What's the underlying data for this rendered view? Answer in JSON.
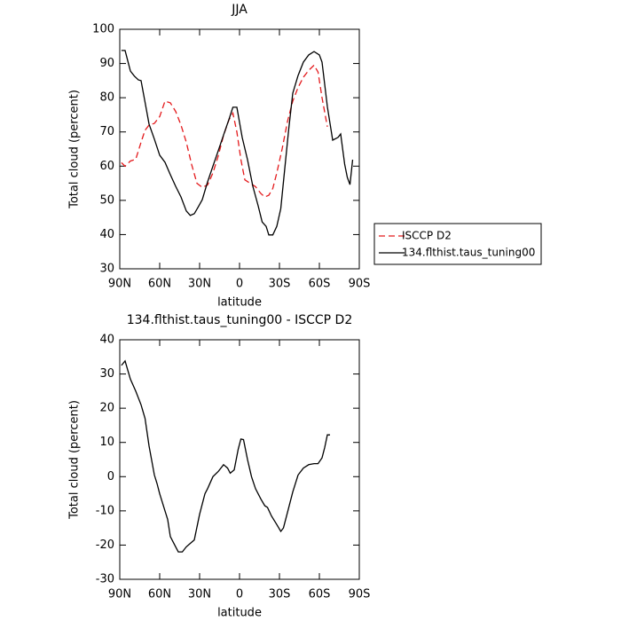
{
  "chart_data": [
    {
      "type": "line",
      "title": "JJA",
      "xlabel": "latitude",
      "ylabel": "Total cloud (percent)",
      "xlim": [
        90,
        -90
      ],
      "ylim": [
        30,
        100
      ],
      "xticks": [
        {
          "value": 90,
          "label": "90N"
        },
        {
          "value": 60,
          "label": "60N"
        },
        {
          "value": 30,
          "label": "30N"
        },
        0,
        {
          "value": -30,
          "label": "30S"
        },
        {
          "value": -60,
          "label": "60S"
        },
        {
          "value": -90,
          "label": "90S"
        }
      ],
      "yticks": [
        30,
        40,
        50,
        60,
        70,
        80,
        90,
        100
      ],
      "legend": "right",
      "series": [
        {
          "name": "ISCCP D2",
          "color": "#e41a1c",
          "dash": true,
          "x": [
            88.75,
            86,
            82,
            78,
            74,
            71,
            68,
            64,
            60,
            56,
            52,
            48,
            44,
            40,
            36,
            32,
            28,
            24,
            20,
            16,
            12,
            8,
            5,
            2,
            -1,
            -4,
            -8,
            -12,
            -16,
            -19,
            -22,
            -25,
            -28,
            -32,
            -36,
            -40,
            -44,
            -48,
            -52,
            -56,
            -59,
            -62,
            -66
          ],
          "values": [
            61,
            60,
            61.5,
            62,
            67,
            70.5,
            72,
            72.5,
            74.5,
            79,
            78.5,
            76,
            72,
            67,
            60.5,
            55,
            53.8,
            54.5,
            58,
            63,
            69,
            73.5,
            75.5,
            70,
            62,
            56,
            55,
            54,
            52,
            51,
            51.5,
            53.5,
            58,
            65,
            73,
            79,
            83,
            86,
            88,
            89.5,
            87.5,
            80,
            71.5
          ]
        },
        {
          "name": "134.flthist.taus_tuning00",
          "color": "#000000",
          "dash": false,
          "x": [
            88.75,
            86,
            82,
            79,
            76,
            74,
            71,
            68,
            64,
            60,
            56,
            52,
            48,
            44,
            40,
            37,
            34,
            31,
            28,
            24,
            20,
            16,
            12,
            8,
            5,
            2,
            -2,
            -6,
            -10,
            -14,
            -17,
            -20,
            -22,
            -25,
            -28,
            -31,
            -34,
            -37,
            -40,
            -44,
            -48,
            -52,
            -56,
            -60,
            -62,
            -66,
            -70,
            -74,
            -76,
            -79,
            -81,
            -83,
            -85
          ],
          "values": [
            93.8,
            93.8,
            87.8,
            86.3,
            85.2,
            85,
            78.7,
            72.3,
            67.9,
            63.2,
            61.1,
            57.5,
            54.1,
            51,
            46.9,
            45.6,
            46.1,
            48.1,
            50.2,
            55.4,
            60,
            64.5,
            69.1,
            73.6,
            77.2,
            77.2,
            68.4,
            61.9,
            54.1,
            48.4,
            43.7,
            42.4,
            39.9,
            39.9,
            42.4,
            47.6,
            59.3,
            70.9,
            81.3,
            86.5,
            90.4,
            92.5,
            93.5,
            92.5,
            90.4,
            77.4,
            67.6,
            68.4,
            69.4,
            60.6,
            56.7,
            54.6,
            61.9
          ]
        }
      ]
    },
    {
      "type": "line",
      "title": "134.flthist.taus_tuning00 - ISCCP D2",
      "xlabel": "latitude",
      "ylabel": "Total cloud (percent)",
      "xlim": [
        90,
        -90
      ],
      "ylim": [
        -30,
        40
      ],
      "xticks": [
        {
          "value": 90,
          "label": "90N"
        },
        {
          "value": 60,
          "label": "60N"
        },
        {
          "value": 30,
          "label": "30N"
        },
        0,
        {
          "value": -30,
          "label": "30S"
        },
        {
          "value": -60,
          "label": "60S"
        },
        {
          "value": -90,
          "label": "90S"
        }
      ],
      "yticks": [
        -30,
        -20,
        -10,
        0,
        10,
        20,
        30,
        40
      ],
      "series": [
        {
          "color": "#000000",
          "dash": false,
          "x": [
            88.75,
            86,
            82,
            78,
            74,
            71,
            68,
            64,
            62,
            60,
            56,
            54,
            52,
            48,
            46,
            43,
            40,
            37,
            34,
            30,
            26,
            24,
            20,
            16,
            12,
            9,
            7,
            4,
            1,
            -1,
            -3,
            -6,
            -9,
            -12,
            -16,
            -19,
            -21,
            -24,
            -28,
            -31,
            -33,
            -36,
            -40,
            -44,
            -48,
            -52,
            -56,
            -59,
            -62,
            -64,
            -66,
            -68
          ],
          "values": [
            32.5,
            33.8,
            28.5,
            25,
            21,
            17,
            9,
            0.5,
            -2,
            -5,
            -10,
            -12.5,
            -17.5,
            -20.5,
            -22,
            -22,
            -20.5,
            -19.5,
            -18.5,
            -11,
            -5,
            -3.5,
            0,
            1.5,
            3.5,
            2.5,
            1,
            2,
            8,
            11,
            10.8,
            5,
            0,
            -3.5,
            -6.5,
            -8.5,
            -9,
            -11.5,
            -14,
            -16,
            -15,
            -10.5,
            -4.5,
            0.5,
            2.5,
            3.5,
            3.8,
            3.8,
            5.5,
            8.5,
            12.2,
            12.2
          ]
        }
      ]
    }
  ]
}
